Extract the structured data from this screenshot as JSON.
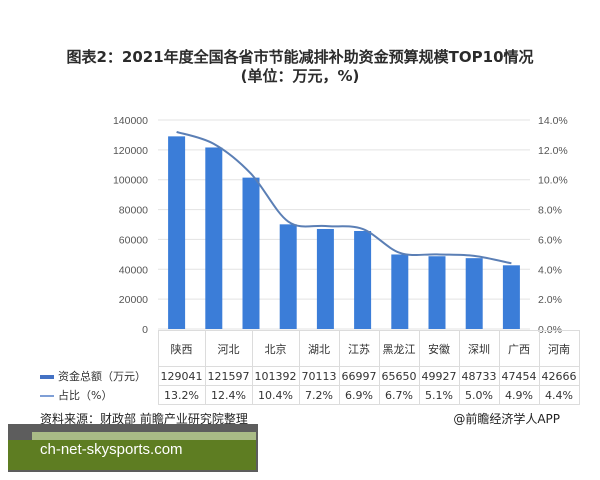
{
  "title": {
    "line1": "图表2：2021年度全国各省市节能减排补助资金预算规模TOP10情况",
    "line2": "(单位：万元，%)"
  },
  "chart_data": {
    "type": "bar",
    "title": "图表2：2021年度全国各省市节能减排补助资金预算规模TOP10情况 (单位：万元，%)",
    "categories": [
      "陕西",
      "河北",
      "北京",
      "湖北",
      "江苏",
      "黑龙江",
      "安徽",
      "深圳",
      "广西",
      "河南"
    ],
    "series": [
      {
        "name": "资金总额（万元）",
        "type": "bar",
        "axis": "left",
        "color": "#3b7dd8",
        "values": [
          129041,
          121597,
          101392,
          70113,
          66997,
          65650,
          49927,
          48733,
          47454,
          42666
        ]
      },
      {
        "name": "占比（%）",
        "type": "line",
        "axis": "right",
        "color": "#5b7fb5",
        "values": [
          13.2,
          12.4,
          10.4,
          7.2,
          6.9,
          6.7,
          5.1,
          5.0,
          4.9,
          4.4
        ],
        "labels": [
          "13.2%",
          "12.4%",
          "10.4%",
          "7.2%",
          "6.9%",
          "6.7%",
          "5.1%",
          "5.0%",
          "4.9%",
          "4.4%"
        ]
      }
    ],
    "y_left": {
      "ticks": [
        "0",
        "20000",
        "40000",
        "60000",
        "80000",
        "100000",
        "120000",
        "140000"
      ],
      "ylim": [
        0,
        140000
      ]
    },
    "y_right": {
      "ticks": [
        "0.0%",
        "2.0%",
        "4.0%",
        "6.0%",
        "8.0%",
        "10.0%",
        "12.0%",
        "14.0%"
      ],
      "ylim": [
        0,
        14
      ]
    },
    "grid": true,
    "legend_position": "data-table"
  },
  "table": {
    "row1_label": "资金总额（万元）",
    "row2_label": "占比（%）"
  },
  "footer": {
    "source": "资料来源：财政部 前瞻产业研究院整理",
    "credit": "@前瞻经济学人APP"
  },
  "overlay": {
    "banner_text": "ch-net-skysports.com"
  }
}
